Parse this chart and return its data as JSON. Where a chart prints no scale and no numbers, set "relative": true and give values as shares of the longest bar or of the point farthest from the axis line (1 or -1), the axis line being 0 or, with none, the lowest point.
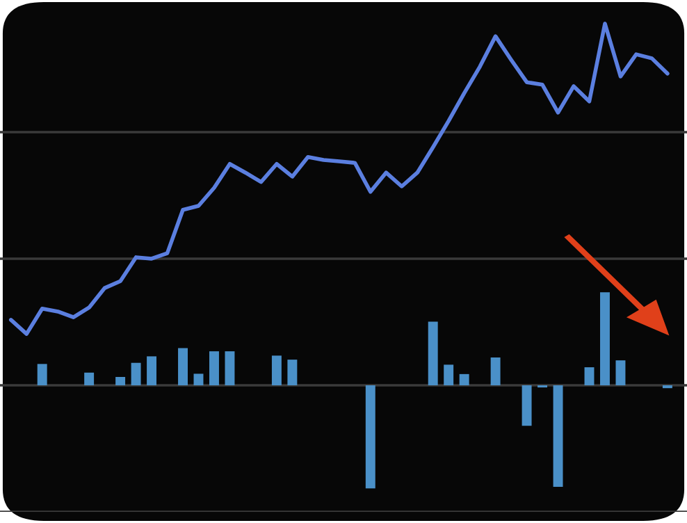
{
  "chart_data": [
    {
      "type": "line",
      "relative": true,
      "ref_lines": [
        {
          "axis": "y",
          "value": 0.7,
          "color": "#3a3a3a"
        },
        {
          "axis": "y",
          "value": 0.35,
          "color": "#3a3a3a"
        },
        {
          "axis": "y",
          "value": -0.35,
          "color": "#3a3a3a"
        }
      ],
      "categories": [
        null,
        null,
        null,
        null,
        null,
        null,
        null,
        null,
        null,
        null,
        null,
        null,
        null,
        null,
        null,
        null,
        null,
        null,
        null,
        null,
        null,
        null,
        null,
        null,
        null,
        null,
        null,
        null,
        null,
        null,
        null,
        null,
        null,
        null,
        null,
        null,
        null,
        null,
        null,
        null,
        null,
        null,
        null
      ],
      "series": [
        {
          "color": "#5b7fe0",
          "values": [
            0.181,
            0.142,
            0.212,
            0.204,
            0.188,
            0.215,
            0.269,
            0.288,
            0.354,
            0.35,
            0.365,
            0.485,
            0.496,
            0.546,
            0.612,
            0.588,
            0.562,
            0.612,
            0.577,
            0.631,
            0.623,
            0.619,
            0.615,
            0.535,
            0.588,
            0.55,
            0.588,
            0.658,
            0.731,
            0.808,
            0.881,
            0.965,
            0.9,
            0.838,
            0.831,
            0.754,
            0.827,
            0.785,
            1,
            0.854,
            0.915,
            0.904,
            0.862
          ]
        }
      ]
    },
    {
      "type": "bar",
      "relative": true,
      "categories": [
        null,
        null,
        null,
        null,
        null,
        null,
        null,
        null,
        null,
        null,
        null,
        null,
        null,
        null,
        null,
        null,
        null,
        null,
        null,
        null,
        null,
        null,
        null,
        null,
        null,
        null,
        null,
        null,
        null,
        null,
        null,
        null,
        null,
        null,
        null,
        null,
        null,
        null,
        null,
        null,
        null,
        null,
        null
      ],
      "series": [
        {
          "color": "#4a90c8",
          "values": [
            0,
            0,
            0.207,
            0,
            0,
            0.123,
            0,
            0.081,
            0.218,
            0.281,
            0,
            0.361,
            0.112,
            0.33,
            0.33,
            0,
            0,
            0.288,
            0.249,
            0,
            0,
            0,
            0,
            -1,
            0,
            0,
            0,
            0.618,
            0.2,
            0.109,
            0,
            0.27,
            0,
            -0.393,
            -0.021,
            -0.986,
            0,
            0.175,
            0.902,
            0.242,
            0,
            0,
            -0.028
          ]
        }
      ]
    }
  ]
}
